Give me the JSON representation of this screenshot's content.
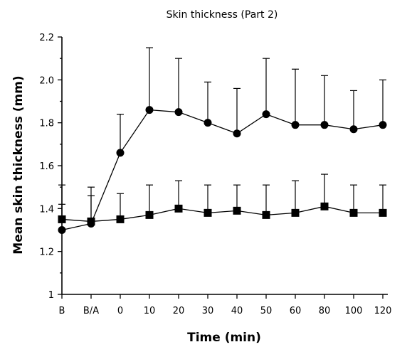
{
  "chart_data": {
    "type": "line",
    "title": "Skin thickness (Part 2)",
    "xlabel": "Time (min)",
    "ylabel": "Mean skin thickness (mm)",
    "categories": [
      "B",
      "B/A",
      "0",
      "10",
      "20",
      "30",
      "40",
      "50",
      "60",
      "80",
      "100",
      "120"
    ],
    "ylim": [
      1.0,
      2.2
    ],
    "yticks": [
      "1",
      "1.2",
      "1.4",
      "1.6",
      "1.8",
      "2.0",
      "2.2"
    ],
    "grid": false,
    "series": [
      {
        "marker": "circle",
        "values": [
          1.3,
          1.33,
          1.66,
          1.86,
          1.85,
          1.8,
          1.75,
          1.84,
          1.79,
          1.79,
          1.77,
          1.79
        ],
        "error_upper": [
          1.42,
          1.46,
          1.84,
          2.15,
          2.1,
          1.99,
          1.96,
          2.1,
          2.05,
          2.02,
          1.95,
          2.0
        ]
      },
      {
        "marker": "square",
        "values": [
          1.35,
          1.34,
          1.35,
          1.37,
          1.4,
          1.38,
          1.39,
          1.37,
          1.38,
          1.41,
          1.38,
          1.38
        ],
        "error_upper": [
          1.51,
          1.5,
          1.47,
          1.51,
          1.53,
          1.51,
          1.51,
          1.51,
          1.53,
          1.56,
          1.51,
          1.51
        ]
      }
    ]
  }
}
